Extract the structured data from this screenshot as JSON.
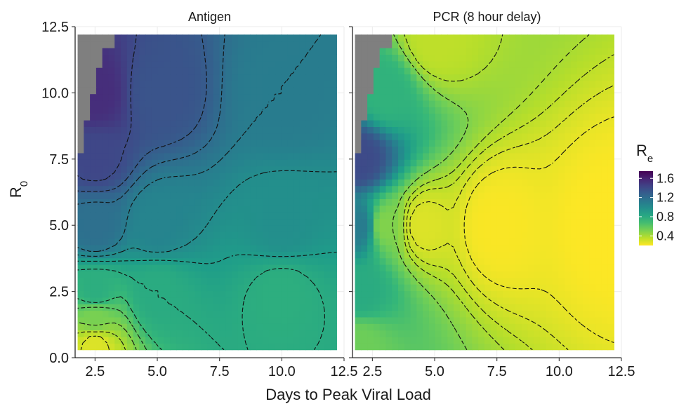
{
  "chart_data": {
    "type": "heatmap",
    "x_axis_title": "Days to Peak Viral Load",
    "y_axis_title": "R",
    "y_axis_title_subscript": "0",
    "x_ticks": [
      2.5,
      5.0,
      7.5,
      10.0,
      12.5
    ],
    "x_tick_labels": [
      "2.5",
      "5.0",
      "7.5",
      "10.0",
      "12.5"
    ],
    "y_ticks": [
      0.0,
      2.5,
      5.0,
      7.5,
      10.0,
      12.5
    ],
    "y_tick_labels": [
      "0.0",
      "2.5",
      "5.0",
      "7.5",
      "10.0",
      "12.5"
    ],
    "xlim": [
      1.7,
      12.5
    ],
    "ylim": [
      0.0,
      12.5
    ],
    "x_data_range": [
      1.8,
      12.2
    ],
    "y_data_range": [
      0.3,
      12.2
    ],
    "grid": true,
    "legend": {
      "title": "R",
      "title_subscript": "e",
      "position": "right",
      "labels": [
        "1.6",
        "1.2",
        "0.8",
        "0.4"
      ],
      "values": [
        1.6,
        1.2,
        0.8,
        0.4
      ],
      "range": [
        0.2,
        1.75
      ],
      "colormap": "viridis"
    },
    "missing_color": "#7f7f7f",
    "panels": [
      {
        "name": "Antigen",
        "grid_max": 1.45,
        "anchors": [
          {
            "x": 2.5,
            "y": 0.5,
            "re": 0.28
          },
          {
            "x": 2.5,
            "y": 1.5,
            "re": 0.52
          },
          {
            "x": 2.5,
            "y": 2.5,
            "re": 0.78
          },
          {
            "x": 2.5,
            "y": 5.0,
            "re": 1.18
          },
          {
            "x": 2.5,
            "y": 7.5,
            "re": 1.42
          },
          {
            "x": 2.5,
            "y": 10.0,
            "re": 1.55
          },
          {
            "x": 5.0,
            "y": 2.5,
            "re": 0.8
          },
          {
            "x": 5.0,
            "y": 5.0,
            "re": 1.05
          },
          {
            "x": 5.0,
            "y": 10.0,
            "re": 1.35
          },
          {
            "x": 10.0,
            "y": 2.5,
            "re": 0.78
          },
          {
            "x": 10.0,
            "y": 5.0,
            "re": 0.98
          },
          {
            "x": 10.0,
            "y": 10.0,
            "re": 1.1
          }
        ],
        "missing_region": [
          {
            "x_from": 1.8,
            "x_to": 2.05,
            "y_from": 7.85
          },
          {
            "x_from": 2.05,
            "x_to": 2.3,
            "y_from": 9.1
          },
          {
            "x_from": 2.3,
            "x_to": 2.55,
            "y_from": 10.05
          },
          {
            "x_from": 2.55,
            "x_to": 2.8,
            "y_from": 11.05
          },
          {
            "x_from": 2.8,
            "x_to": 3.3,
            "y_from": 11.8
          }
        ],
        "contour_levels": [
          0.2,
          0.3,
          0.4,
          0.5,
          0.6,
          0.7,
          0.8,
          0.9,
          1.0,
          1.1,
          1.2,
          1.3,
          1.4,
          1.5
        ]
      },
      {
        "name": "PCR (8 hour delay)",
        "grid_max": 0.6,
        "anchors": [
          {
            "x": 2.0,
            "y": 0.5,
            "re": 0.55
          },
          {
            "x": 2.0,
            "y": 2.5,
            "re": 0.8
          },
          {
            "x": 2.0,
            "y": 5.0,
            "re": 1.1
          },
          {
            "x": 2.0,
            "y": 7.5,
            "re": 1.4
          },
          {
            "x": 3.0,
            "y": 5.0,
            "re": 0.5
          },
          {
            "x": 3.0,
            "y": 10.0,
            "re": 0.75
          },
          {
            "x": 4.5,
            "y": 5.0,
            "re": 0.28
          },
          {
            "x": 5.0,
            "y": 12.0,
            "re": 0.35
          },
          {
            "x": 7.5,
            "y": 5.0,
            "re": 0.21
          },
          {
            "x": 12.0,
            "y": 5.0,
            "re": 0.2
          }
        ],
        "missing_region": [
          {
            "x_from": 1.8,
            "x_to": 2.05,
            "y_from": 7.85
          },
          {
            "x_from": 2.05,
            "x_to": 2.3,
            "y_from": 9.1
          },
          {
            "x_from": 2.3,
            "x_to": 2.55,
            "y_from": 10.05
          },
          {
            "x_from": 2.55,
            "x_to": 2.8,
            "y_from": 11.05
          },
          {
            "x_from": 2.8,
            "x_to": 3.3,
            "y_from": 11.8
          }
        ],
        "contour_levels": [
          0.2,
          0.25,
          0.3,
          0.35,
          0.4,
          0.5,
          0.6,
          0.7,
          0.8,
          0.9,
          1.0,
          1.1,
          1.2,
          1.3,
          1.4
        ]
      }
    ]
  }
}
